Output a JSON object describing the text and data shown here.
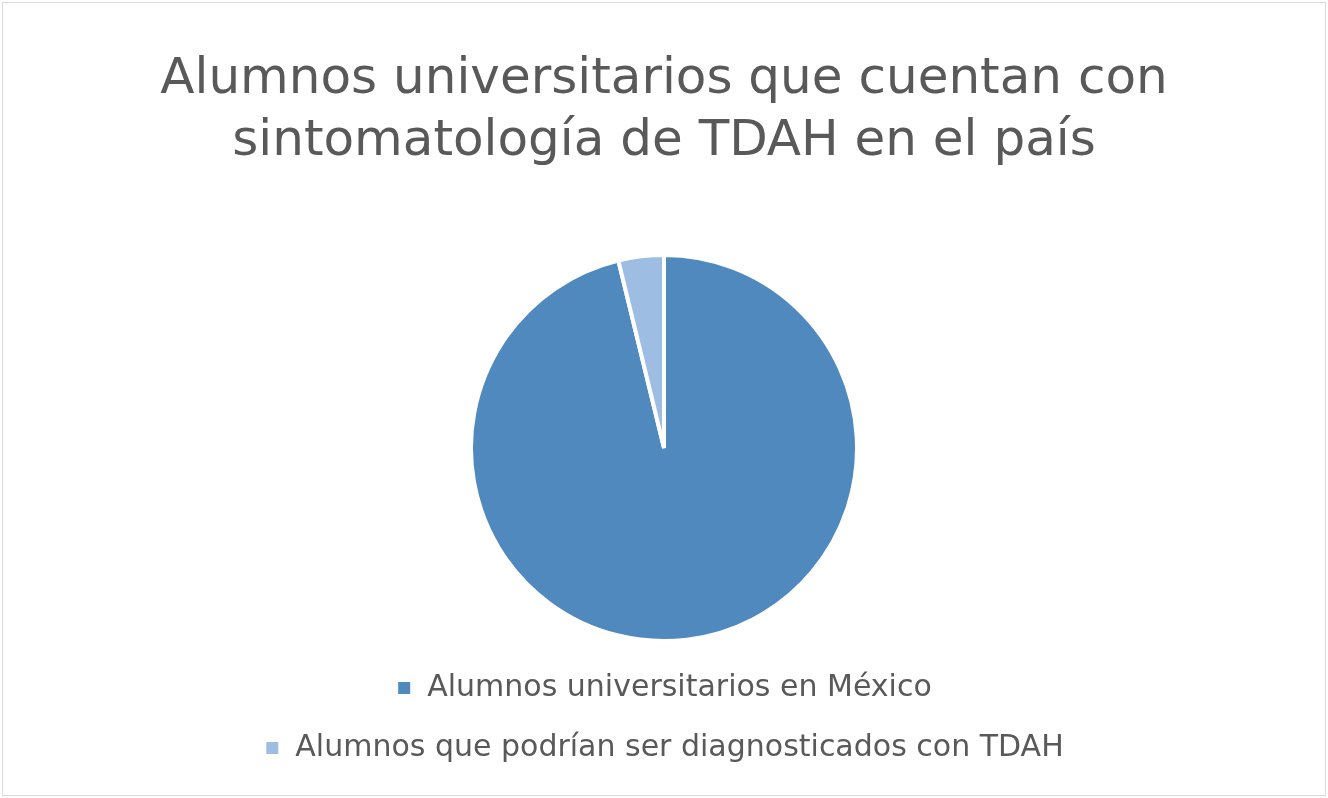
{
  "chart_data": {
    "type": "pie",
    "title": "Alumnos universitarios que cuentan con sintomatología de TDAH en el país",
    "categories": [
      "Alumnos universitarios en México",
      "Alumnos que podrían ser diagnosticados con TDAH"
    ],
    "values": [
      96.2,
      3.8
    ],
    "colors": [
      "#4f89bd",
      "#9dbde3"
    ],
    "legend": "bottom"
  }
}
